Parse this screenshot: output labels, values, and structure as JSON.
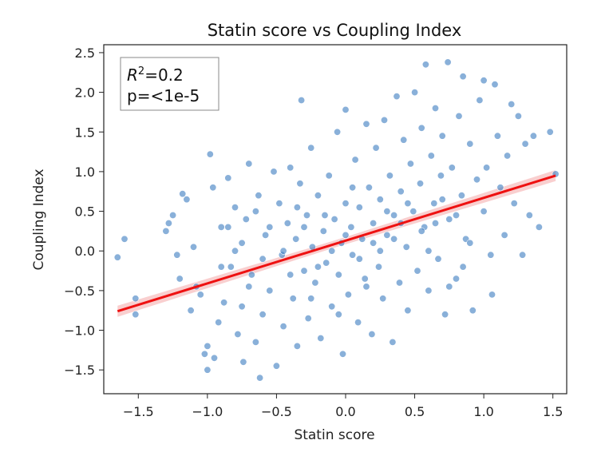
{
  "chart_data": {
    "type": "scatter",
    "title": "Statin score vs Coupling Index",
    "xlabel": "Statin score",
    "ylabel": "Coupling Index",
    "xlim": [
      -1.75,
      1.6
    ],
    "ylim": [
      -1.8,
      2.6
    ],
    "xticks": [
      -1.5,
      -1.0,
      -0.5,
      0.0,
      0.5,
      1.0,
      1.5
    ],
    "xtick_labels": [
      "−1.5",
      "−1.0",
      "−0.5",
      "0.0",
      "0.5",
      "1.0",
      "1.5"
    ],
    "yticks": [
      -1.5,
      -1.0,
      -0.5,
      0.0,
      0.5,
      1.0,
      1.5,
      2.0,
      2.5
    ],
    "ytick_labels": [
      "−1.5",
      "−1.0",
      "−0.5",
      "0.0",
      "0.5",
      "1.0",
      "1.5",
      "2.0",
      "2.5"
    ],
    "grid": false,
    "point_color": "#3b7bbf",
    "fit_line_color": "#ee1111",
    "ci_band_color": "#f4a0a0",
    "fit_line": {
      "x": [
        -1.65,
        1.52
      ],
      "y": [
        -0.76,
        0.95
      ],
      "ci_halfwidth": [
        0.07,
        0.045,
        0.07
      ]
    },
    "annotation": {
      "r2_symbol": "R",
      "r2_exponent": "2",
      "r2_value": "=0.2",
      "p_text": "p=<1e-5",
      "placement": "top-left"
    },
    "points": [
      {
        "x": -1.65,
        "y": -0.08
      },
      {
        "x": -1.6,
        "y": 0.15
      },
      {
        "x": -1.52,
        "y": -0.6
      },
      {
        "x": -1.52,
        "y": -0.8
      },
      {
        "x": -1.3,
        "y": 0.25
      },
      {
        "x": -1.28,
        "y": 0.35
      },
      {
        "x": -1.25,
        "y": 0.45
      },
      {
        "x": -1.22,
        "y": -0.05
      },
      {
        "x": -1.2,
        "y": -0.35
      },
      {
        "x": -1.18,
        "y": 0.72
      },
      {
        "x": -1.15,
        "y": 0.65
      },
      {
        "x": -1.12,
        "y": -0.75
      },
      {
        "x": -1.1,
        "y": 0.05
      },
      {
        "x": -1.08,
        "y": -0.45
      },
      {
        "x": -1.05,
        "y": -0.55
      },
      {
        "x": -1.02,
        "y": -1.3
      },
      {
        "x": -1.0,
        "y": -1.5
      },
      {
        "x": -1.0,
        "y": -1.2
      },
      {
        "x": -0.98,
        "y": 1.22
      },
      {
        "x": -0.96,
        "y": 0.8
      },
      {
        "x": -0.95,
        "y": -1.35
      },
      {
        "x": -0.92,
        "y": -0.9
      },
      {
        "x": -0.9,
        "y": 0.3
      },
      {
        "x": -0.88,
        "y": -0.65
      },
      {
        "x": -0.85,
        "y": 0.92
      },
      {
        "x": -0.83,
        "y": -0.2
      },
      {
        "x": -0.8,
        "y": 0.55
      },
      {
        "x": -0.78,
        "y": -1.05
      },
      {
        "x": -0.75,
        "y": 0.1
      },
      {
        "x": -0.74,
        "y": -1.4
      },
      {
        "x": -0.72,
        "y": 0.4
      },
      {
        "x": -0.7,
        "y": 1.1
      },
      {
        "x": -0.68,
        "y": -0.3
      },
      {
        "x": -0.65,
        "y": -1.15
      },
      {
        "x": -0.63,
        "y": 0.7
      },
      {
        "x": -0.62,
        "y": -1.6
      },
      {
        "x": -0.6,
        "y": -0.8
      },
      {
        "x": -0.58,
        "y": 0.2
      },
      {
        "x": -0.55,
        "y": -0.5
      },
      {
        "x": -0.52,
        "y": 1.0
      },
      {
        "x": -0.5,
        "y": -1.45
      },
      {
        "x": -0.48,
        "y": 0.6
      },
      {
        "x": -0.46,
        "y": -0.05
      },
      {
        "x": -0.45,
        "y": -0.95
      },
      {
        "x": -0.42,
        "y": 0.35
      },
      {
        "x": -0.4,
        "y": 1.05
      },
      {
        "x": -0.38,
        "y": -0.6
      },
      {
        "x": -0.36,
        "y": 0.15
      },
      {
        "x": -0.35,
        "y": -1.2
      },
      {
        "x": -0.33,
        "y": 0.85
      },
      {
        "x": -0.32,
        "y": 1.9
      },
      {
        "x": -0.3,
        "y": -0.25
      },
      {
        "x": -0.28,
        "y": 0.45
      },
      {
        "x": -0.27,
        "y": -0.85
      },
      {
        "x": -0.25,
        "y": 1.3
      },
      {
        "x": -0.24,
        "y": 0.05
      },
      {
        "x": -0.22,
        "y": -0.4
      },
      {
        "x": -0.2,
        "y": 0.7
      },
      {
        "x": -0.18,
        "y": -1.1
      },
      {
        "x": -0.16,
        "y": 0.25
      },
      {
        "x": -0.14,
        "y": -0.15
      },
      {
        "x": -0.12,
        "y": 0.95
      },
      {
        "x": -0.1,
        "y": -0.7
      },
      {
        "x": -0.08,
        "y": 0.4
      },
      {
        "x": -0.06,
        "y": 1.5
      },
      {
        "x": -0.05,
        "y": -0.3
      },
      {
        "x": -0.03,
        "y": 0.1
      },
      {
        "x": -0.02,
        "y": -1.3
      },
      {
        "x": 0.0,
        "y": 0.6
      },
      {
        "x": 0.0,
        "y": 1.78
      },
      {
        "x": 0.02,
        "y": -0.55
      },
      {
        "x": 0.04,
        "y": 0.3
      },
      {
        "x": 0.05,
        "y": -0.05
      },
      {
        "x": 0.07,
        "y": 1.15
      },
      {
        "x": 0.09,
        "y": -0.9
      },
      {
        "x": 0.1,
        "y": 0.55
      },
      {
        "x": 0.12,
        "y": 0.15
      },
      {
        "x": 0.14,
        "y": -0.35
      },
      {
        "x": 0.15,
        "y": 1.6
      },
      {
        "x": 0.17,
        "y": 0.8
      },
      {
        "x": 0.19,
        "y": -1.05
      },
      {
        "x": 0.2,
        "y": 0.35
      },
      {
        "x": 0.22,
        "y": 1.3
      },
      {
        "x": 0.24,
        "y": -0.2
      },
      {
        "x": 0.25,
        "y": 0.65
      },
      {
        "x": 0.27,
        "y": -0.6
      },
      {
        "x": 0.28,
        "y": 1.65
      },
      {
        "x": 0.3,
        "y": 0.2
      },
      {
        "x": 0.32,
        "y": 0.95
      },
      {
        "x": 0.34,
        "y": -1.15
      },
      {
        "x": 0.35,
        "y": 0.45
      },
      {
        "x": 0.37,
        "y": 1.95
      },
      {
        "x": 0.39,
        "y": -0.4
      },
      {
        "x": 0.4,
        "y": 0.75
      },
      {
        "x": 0.42,
        "y": 1.4
      },
      {
        "x": 0.44,
        "y": 0.05
      },
      {
        "x": 0.45,
        "y": -0.75
      },
      {
        "x": 0.47,
        "y": 1.1
      },
      {
        "x": 0.49,
        "y": 0.5
      },
      {
        "x": 0.5,
        "y": 2.0
      },
      {
        "x": 0.52,
        "y": -0.25
      },
      {
        "x": 0.54,
        "y": 0.85
      },
      {
        "x": 0.55,
        "y": 1.55
      },
      {
        "x": 0.57,
        "y": 0.3
      },
      {
        "x": 0.58,
        "y": 2.35
      },
      {
        "x": 0.6,
        "y": -0.5
      },
      {
        "x": 0.62,
        "y": 1.2
      },
      {
        "x": 0.64,
        "y": 0.6
      },
      {
        "x": 0.65,
        "y": 1.8
      },
      {
        "x": 0.67,
        "y": -0.1
      },
      {
        "x": 0.69,
        "y": 0.95
      },
      {
        "x": 0.7,
        "y": 1.45
      },
      {
        "x": 0.72,
        "y": -0.8
      },
      {
        "x": 0.74,
        "y": 2.38
      },
      {
        "x": 0.75,
        "y": 0.4
      },
      {
        "x": 0.77,
        "y": 1.05
      },
      {
        "x": 0.8,
        "y": -0.35
      },
      {
        "x": 0.82,
        "y": 1.7
      },
      {
        "x": 0.84,
        "y": 0.7
      },
      {
        "x": 0.85,
        "y": 2.2
      },
      {
        "x": 0.87,
        "y": 0.15
      },
      {
        "x": 0.9,
        "y": 1.35
      },
      {
        "x": 0.92,
        "y": -0.75
      },
      {
        "x": 0.95,
        "y": 0.9
      },
      {
        "x": 0.97,
        "y": 1.9
      },
      {
        "x": 1.0,
        "y": 0.5
      },
      {
        "x": 1.0,
        "y": 2.15
      },
      {
        "x": 1.02,
        "y": 1.05
      },
      {
        "x": 1.05,
        "y": -0.05
      },
      {
        "x": 1.06,
        "y": -0.55
      },
      {
        "x": 1.08,
        "y": 2.1
      },
      {
        "x": 1.1,
        "y": 1.45
      },
      {
        "x": 1.12,
        "y": 0.8
      },
      {
        "x": 1.15,
        "y": 0.2
      },
      {
        "x": 1.17,
        "y": 1.2
      },
      {
        "x": 1.2,
        "y": 1.85
      },
      {
        "x": 1.22,
        "y": 0.6
      },
      {
        "x": 1.25,
        "y": 1.7
      },
      {
        "x": 1.28,
        "y": -0.05
      },
      {
        "x": 1.3,
        "y": 1.35
      },
      {
        "x": 1.33,
        "y": 0.45
      },
      {
        "x": 1.36,
        "y": 1.45
      },
      {
        "x": 1.4,
        "y": 0.3
      },
      {
        "x": 1.48,
        "y": 1.5
      },
      {
        "x": 1.52,
        "y": 0.97
      },
      {
        "x": -0.3,
        "y": 0.3
      },
      {
        "x": -0.2,
        "y": -0.2
      },
      {
        "x": -0.1,
        "y": 0.0
      },
      {
        "x": 0.0,
        "y": 0.2
      },
      {
        "x": 0.1,
        "y": -0.1
      },
      {
        "x": 0.2,
        "y": 0.1
      },
      {
        "x": 0.3,
        "y": 0.5
      },
      {
        "x": -0.4,
        "y": -0.3
      },
      {
        "x": 0.4,
        "y": 0.35
      },
      {
        "x": -0.15,
        "y": 0.45
      },
      {
        "x": 0.15,
        "y": -0.45
      },
      {
        "x": 0.25,
        "y": 0.0
      },
      {
        "x": -0.25,
        "y": -0.6
      },
      {
        "x": 0.35,
        "y": 0.15
      },
      {
        "x": -0.35,
        "y": 0.55
      },
      {
        "x": 0.05,
        "y": 0.8
      },
      {
        "x": -0.05,
        "y": -0.8
      },
      {
        "x": 0.45,
        "y": 0.6
      },
      {
        "x": -0.45,
        "y": 0.0
      },
      {
        "x": 0.55,
        "y": 0.25
      },
      {
        "x": -0.55,
        "y": 0.3
      },
      {
        "x": 0.6,
        "y": 0.0
      },
      {
        "x": -0.6,
        "y": -0.1
      },
      {
        "x": 0.65,
        "y": 0.35
      },
      {
        "x": -0.65,
        "y": 0.5
      },
      {
        "x": 0.7,
        "y": 0.65
      },
      {
        "x": -0.7,
        "y": -0.45
      },
      {
        "x": 0.8,
        "y": 0.45
      },
      {
        "x": -0.8,
        "y": 0.0
      },
      {
        "x": 0.9,
        "y": 0.1
      },
      {
        "x": -0.9,
        "y": -0.2
      },
      {
        "x": 0.85,
        "y": -0.2
      },
      {
        "x": -0.85,
        "y": 0.3
      },
      {
        "x": 0.75,
        "y": -0.45
      },
      {
        "x": -0.75,
        "y": -0.7
      }
    ]
  }
}
